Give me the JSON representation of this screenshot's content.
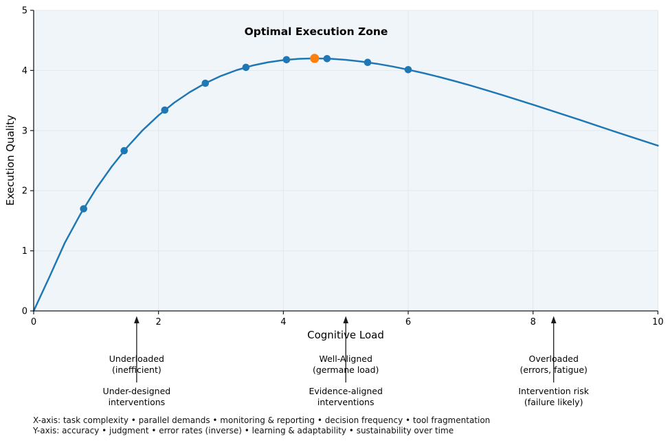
{
  "chart_data": {
    "type": "line",
    "title": "Optimal Execution Zone",
    "xlabel": "Cognitive Load",
    "ylabel": "Execution Quality",
    "xlim": [
      0,
      10
    ],
    "ylim": [
      0,
      5
    ],
    "x_ticks": [
      0,
      2,
      4,
      6,
      8,
      10
    ],
    "y_ticks": [
      0,
      1,
      2,
      3,
      4,
      5
    ],
    "grid": true,
    "legend": "none",
    "line_color": "#1f77b4",
    "peak_color": "#ff7f0e",
    "axis_color": "#1a1a1a",
    "plot_bg": "#f0f5f9",
    "grid_color": "#e4e9ee",
    "curve": {
      "x": [
        0,
        0.25,
        0.5,
        0.75,
        1,
        1.25,
        1.5,
        1.75,
        2,
        2.25,
        2.5,
        2.75,
        3,
        3.25,
        3.5,
        3.75,
        4,
        4.25,
        4.5,
        4.75,
        5,
        5.25,
        5.5,
        5.75,
        6,
        6.25,
        6.5,
        6.75,
        7,
        7.25,
        7.5,
        7.75,
        8,
        8.25,
        8.5,
        8.75,
        9,
        9.25,
        9.5,
        9.75,
        10
      ],
      "y": [
        0,
        0.56,
        1.135,
        1.611,
        2.032,
        2.402,
        2.727,
        3.01,
        3.253,
        3.462,
        3.639,
        3.787,
        3.908,
        4.005,
        4.08,
        4.135,
        4.172,
        4.193,
        4.2,
        4.194,
        4.176,
        4.148,
        4.111,
        4.065,
        4.013,
        3.954,
        3.89,
        3.821,
        3.749,
        3.672,
        3.594,
        3.512,
        3.43,
        3.346,
        3.262,
        3.177,
        3.09,
        3.004,
        2.919,
        2.834,
        2.749
      ]
    },
    "markers": {
      "x": [
        0.8,
        1.45,
        2.1,
        2.75,
        3.4,
        4.05,
        4.7,
        5.35,
        6.0
      ],
      "y": [
        1.699,
        2.665,
        3.341,
        3.787,
        4.052,
        4.178,
        4.196,
        4.134,
        4.013
      ]
    },
    "peak_point": {
      "x": 4.5,
      "y": 4.2
    },
    "annotations": [
      {
        "x": 1.65,
        "state": "Underloaded\n(inefficient)",
        "intervention": "Under-designed\ninterventions"
      },
      {
        "x": 5.0,
        "state": "Well-Aligned\n(germane load)",
        "intervention": "Evidence-aligned\ninterventions"
      },
      {
        "x": 8.33,
        "state": "Overloaded\n(errors, fatigue)",
        "intervention": "Intervention risk\n(failure likely)"
      }
    ],
    "footnotes": [
      "X-axis: task complexity • parallel demands • monitoring & reporting • decision frequency • tool fragmentation",
      "Y-axis: accuracy • judgment • error rates (inverse) • learning & adaptability • sustainability over time"
    ]
  }
}
